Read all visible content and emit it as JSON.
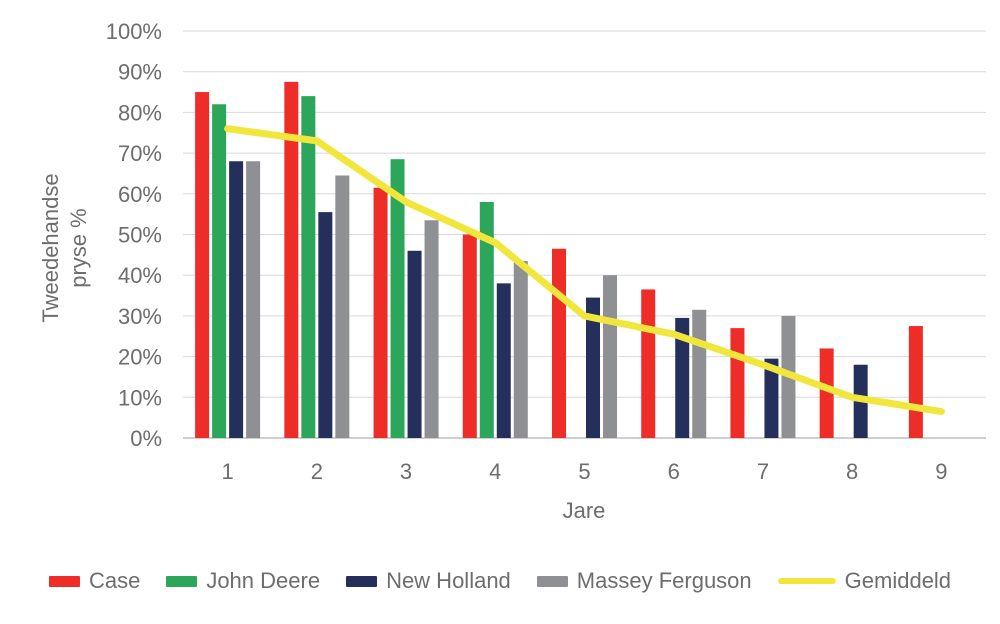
{
  "chart_data": {
    "type": "bar",
    "subtype": "grouped-bars-with-line-overlay",
    "title": "",
    "xlabel": "Jare",
    "ylabel": "Tweedehandse pryse %",
    "ylabel_lines": {
      "line1": "Tweedehandse",
      "line2": "pryse %"
    },
    "categories": [
      "1",
      "2",
      "3",
      "4",
      "5",
      "6",
      "7",
      "8",
      "9"
    ],
    "yticks": [
      "0%",
      "10%",
      "20%",
      "30%",
      "40%",
      "50%",
      "60%",
      "70%",
      "80%",
      "90%",
      "100%"
    ],
    "ylim": [
      0,
      100
    ],
    "grid": true,
    "legend_position": "bottom",
    "series": [
      {
        "name": "Case",
        "kind": "bar",
        "color": "#EE2D29",
        "values": [
          85,
          87.5,
          61.5,
          50,
          46.5,
          36.5,
          27,
          22,
          27.5
        ]
      },
      {
        "name": "John Deere",
        "kind": "bar",
        "color": "#2BA65A",
        "values": [
          82,
          84,
          68.5,
          58,
          null,
          null,
          null,
          null,
          null
        ]
      },
      {
        "name": "New Holland",
        "kind": "bar",
        "color": "#252F5B",
        "values": [
          68,
          55.5,
          46,
          38,
          34.5,
          29.5,
          19.5,
          18,
          null
        ]
      },
      {
        "name": "Massey Ferguson",
        "kind": "bar",
        "color": "#8E9093",
        "values": [
          68,
          64.5,
          53.5,
          43.5,
          40,
          31.5,
          30,
          null,
          null
        ]
      },
      {
        "name": "Gemiddeld",
        "kind": "line",
        "color": "#F1E73C",
        "values": [
          76,
          73,
          58,
          48,
          30,
          25.5,
          18,
          10,
          6.5
        ]
      }
    ],
    "colors": {
      "gridline": "#D9D9D9",
      "axis_line": "#BFBFBF",
      "text": "#6D6D6D"
    }
  }
}
